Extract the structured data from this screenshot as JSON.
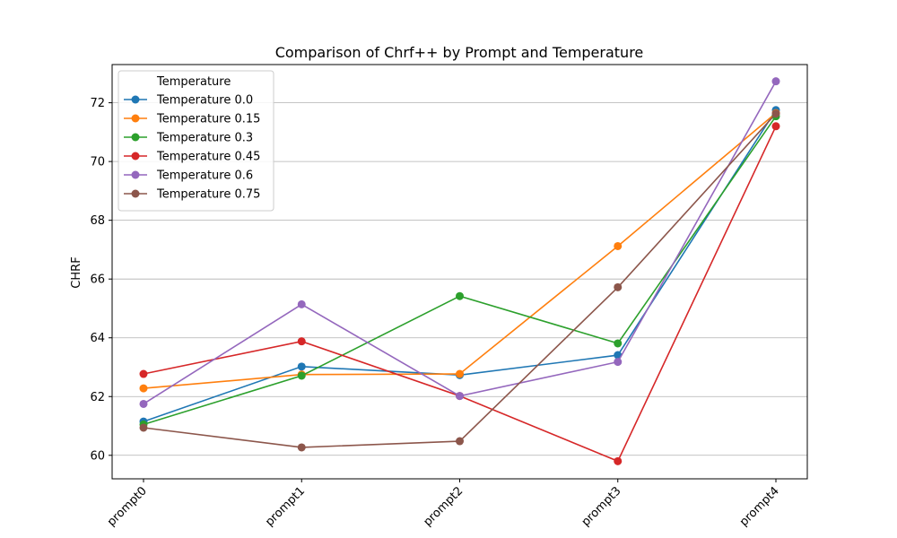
{
  "chart_data": {
    "type": "line",
    "title": "Comparison of Chrf++ by Prompt and Temperature",
    "xlabel": "",
    "ylabel": "CHRF",
    "categories": [
      "prompt0",
      "prompt1",
      "prompt2",
      "prompt3",
      "prompt4"
    ],
    "ylim": [
      59.2,
      73.3
    ],
    "yticks": [
      60,
      62,
      64,
      66,
      68,
      70,
      72
    ],
    "grid": "y-major",
    "legend": {
      "title": "Temperature",
      "position": "top-left"
    },
    "series": [
      {
        "name": "Temperature 0.0",
        "color": "#1f77b4",
        "values": [
          61.15,
          63.02,
          62.73,
          63.41,
          71.75
        ]
      },
      {
        "name": "Temperature 0.15",
        "color": "#ff7f0e",
        "values": [
          62.28,
          62.75,
          62.77,
          67.12,
          71.65
        ]
      },
      {
        "name": "Temperature 0.3",
        "color": "#2ca02c",
        "values": [
          61.05,
          62.71,
          65.42,
          63.81,
          71.54
        ]
      },
      {
        "name": "Temperature 0.45",
        "color": "#d62728",
        "values": [
          62.77,
          63.88,
          62.02,
          59.8,
          71.2
        ]
      },
      {
        "name": "Temperature 0.6",
        "color": "#9467bd",
        "values": [
          61.75,
          65.14,
          62.02,
          63.18,
          72.73
        ]
      },
      {
        "name": "Temperature 0.75",
        "color": "#8c564b",
        "values": [
          60.94,
          60.27,
          60.48,
          65.72,
          71.63
        ]
      }
    ]
  }
}
